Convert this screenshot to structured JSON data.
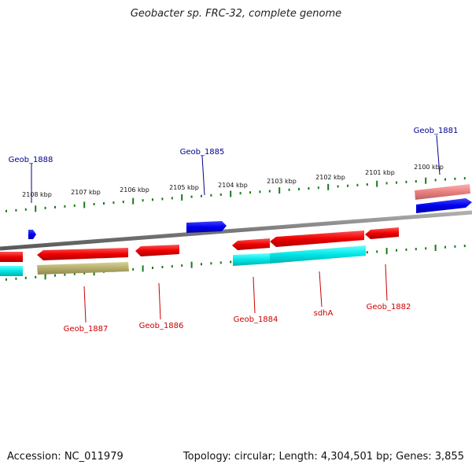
{
  "title": "Geobacter sp. FRC-32, complete genome",
  "footer": {
    "accession": "Accession: NC_011979",
    "summary": "Topology: circular; Length: 4,304,501 bp; Genes: 3,855"
  },
  "colors": {
    "forward_gene": "#0000ee",
    "reverse_gene": "#ee0000",
    "forward_label": "#00008b",
    "reverse_label": "#cc0000",
    "backbone": "#808080",
    "ticks": "#1a7a1a",
    "cyan_feature": "#00e5e5",
    "olive_feature": "#b5ad6a",
    "pink_feature": "#e88080"
  },
  "scale": {
    "ticks": [
      "2108 kbp",
      "2107 kbp",
      "2106 kbp",
      "2105 kbp",
      "2104 kbp",
      "2103 kbp",
      "2102 kbp",
      "2101 kbp",
      "2100 kbp"
    ]
  },
  "genes": {
    "forward": [
      "Geob_1888",
      "Geob_1885",
      "Geob_1881"
    ],
    "reverse": [
      "Geob_1887",
      "Geob_1886",
      "Geob_1884",
      "sdhA",
      "Geob_1882"
    ]
  }
}
